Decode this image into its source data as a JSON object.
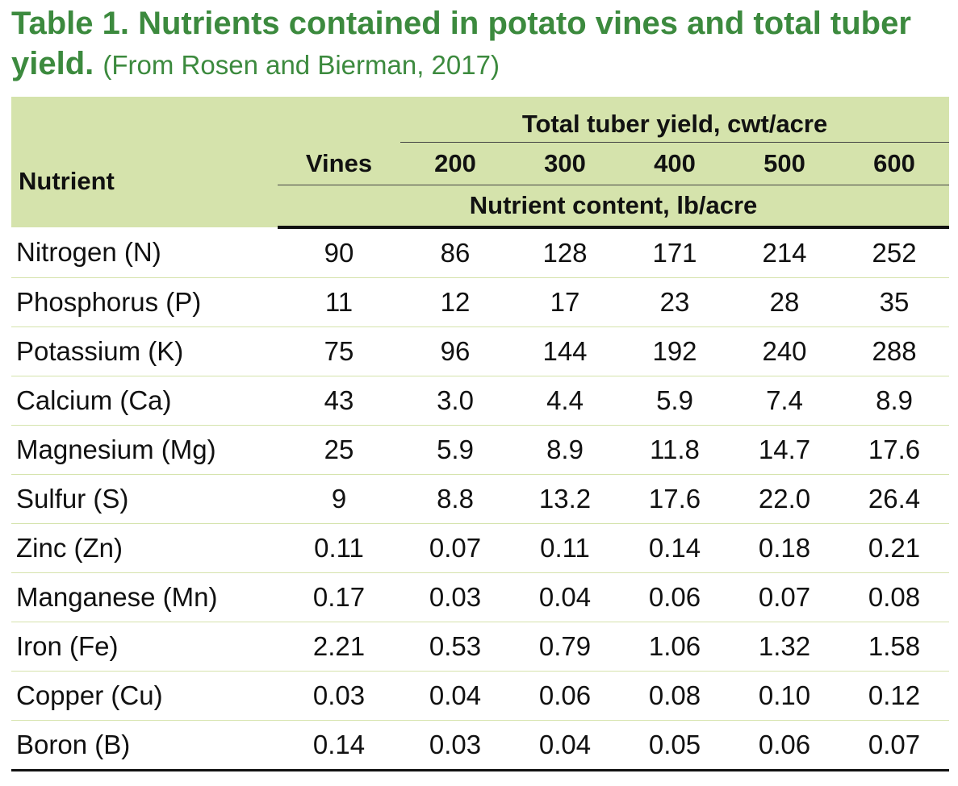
{
  "title": {
    "main": "Table 1. Nutrients contained in potato vines and total tuber yield.",
    "source": "(From Rosen and Bierman, 2017)"
  },
  "header": {
    "nutrient": "Nutrient",
    "vines": "Vines",
    "yield_span": "Total tuber yield, cwt/acre",
    "yields": [
      "200",
      "300",
      "400",
      "500",
      "600"
    ],
    "content_span": "Nutrient content, lb/acre"
  },
  "rows": [
    {
      "name": "Nitrogen (N)",
      "values": [
        "90",
        "86",
        "128",
        "171",
        "214",
        "252"
      ]
    },
    {
      "name": "Phosphorus (P)",
      "values": [
        "11",
        "12",
        "17",
        "23",
        "28",
        "35"
      ]
    },
    {
      "name": "Potassium (K)",
      "values": [
        "75",
        "96",
        "144",
        "192",
        "240",
        "288"
      ]
    },
    {
      "name": "Calcium (Ca)",
      "values": [
        "43",
        "3.0",
        "4.4",
        "5.9",
        "7.4",
        "8.9"
      ]
    },
    {
      "name": "Magnesium (Mg)",
      "values": [
        "25",
        "5.9",
        "8.9",
        "11.8",
        "14.7",
        "17.6"
      ]
    },
    {
      "name": "Sulfur (S)",
      "values": [
        "9",
        "8.8",
        "13.2",
        "17.6",
        "22.0",
        "26.4"
      ]
    },
    {
      "name": "Zinc (Zn)",
      "values": [
        "0.11",
        "0.07",
        "0.11",
        "0.14",
        "0.18",
        "0.21"
      ]
    },
    {
      "name": "Manganese (Mn)",
      "values": [
        "0.17",
        "0.03",
        "0.04",
        "0.06",
        "0.07",
        "0.08"
      ]
    },
    {
      "name": "Iron (Fe)",
      "values": [
        "2.21",
        "0.53",
        "0.79",
        "1.06",
        "1.32",
        "1.58"
      ]
    },
    {
      "name": "Copper (Cu)",
      "values": [
        "0.03",
        "0.04",
        "0.06",
        "0.08",
        "0.10",
        "0.12"
      ]
    },
    {
      "name": "Boron (B)",
      "values": [
        "0.14",
        "0.03",
        "0.04",
        "0.05",
        "0.06",
        "0.07"
      ]
    }
  ],
  "colors": {
    "title_green": "#3c8a3e",
    "header_bg": "#d5e3ac",
    "row_rule": "#d5e3ac"
  }
}
